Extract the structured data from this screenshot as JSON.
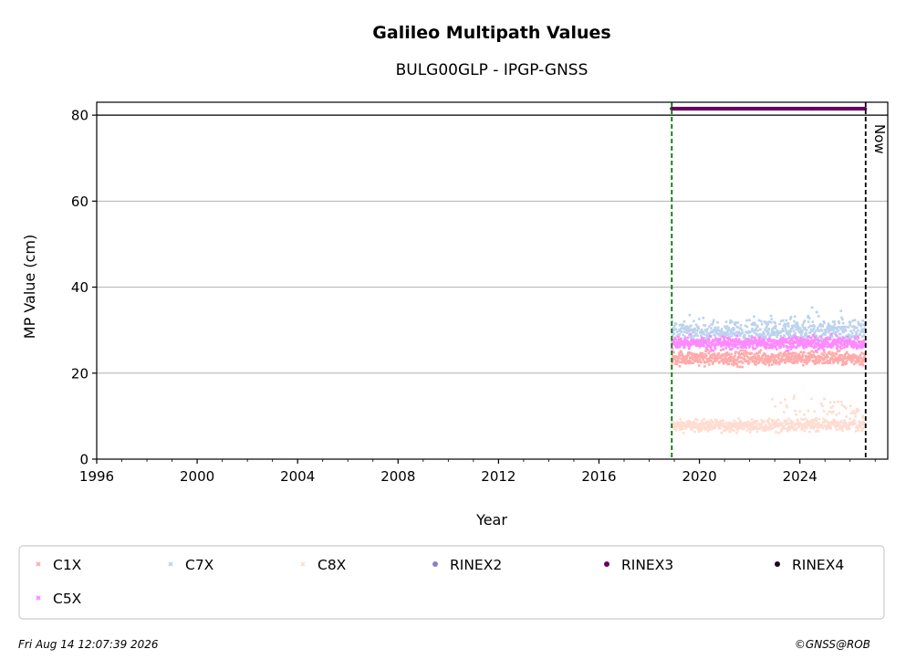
{
  "chart_data": {
    "type": "scatter",
    "title": "Galileo Multipath Values",
    "subtitle": "BULG00GLP - IPGP-GNSS",
    "xlabel": "Year",
    "ylabel": "MP Value (cm)",
    "xlim": [
      1996,
      2027.5
    ],
    "ylim": [
      0,
      83
    ],
    "x_ticks": [
      "1996",
      "2000",
      "2004",
      "2008",
      "2012",
      "2016",
      "2020",
      "2024"
    ],
    "y_ticks": [
      "0",
      "20",
      "40",
      "60",
      "80"
    ],
    "grid": "horizontal",
    "legend_placement": "bottom",
    "series": [
      {
        "name": "C1X",
        "color": "#ffaaaa",
        "marker": "x",
        "x_start": 2018.9,
        "x_end": 2026.6,
        "mean": 23.5,
        "spread": 1.5
      },
      {
        "name": "C7X",
        "color": "#bcd2ee",
        "marker": "x",
        "x_start": 2018.9,
        "x_end": 2026.6,
        "mean": 29.5,
        "spread": 2.5
      },
      {
        "name": "C8X",
        "color": "#ffdcd0",
        "marker": "x",
        "x_start": 2018.9,
        "x_end": 2026.6,
        "mean": 7.8,
        "spread": 1.2
      },
      {
        "name": "RINEX2",
        "color": "#8a80c8",
        "marker": "dot"
      },
      {
        "name": "RINEX3",
        "color": "#6a0060",
        "marker": "dot",
        "x_start": 2018.9,
        "x_end": 2026.6,
        "value": 81.5
      },
      {
        "name": "RINEX4",
        "color": "#220022",
        "marker": "dot"
      },
      {
        "name": "C5X",
        "color": "#ff88ff",
        "marker": "x",
        "x_start": 2018.9,
        "x_end": 2026.6,
        "mean": 27,
        "spread": 1.3
      }
    ],
    "reference_lines": [
      {
        "type": "horizontal",
        "y": 80,
        "color": "#000000"
      },
      {
        "type": "vertical",
        "x": 2018.9,
        "color": "#007700",
        "style": "dashed"
      },
      {
        "type": "vertical",
        "x": 2026.62,
        "color": "#000000",
        "style": "dashed",
        "label": "Now"
      }
    ]
  },
  "footer": {
    "timestamp": "Fri Aug 14 12:07:39 2026",
    "copyright": "©GNSS@ROB"
  }
}
